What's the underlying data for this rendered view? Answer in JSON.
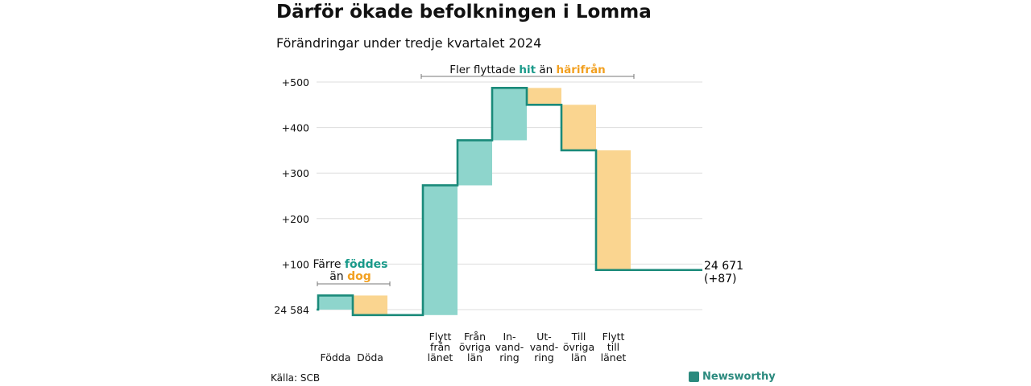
{
  "title": "Därför ökade befolkningen i Lomma",
  "subtitle": "Förändringar under tredje kvartalet 2024",
  "source": "Källa: SCB",
  "brand": "Newsworthy",
  "colors": {
    "increase": "#8ed5cc",
    "decrease": "#fad590",
    "line": "#1a8a7a",
    "grid": "#dddddd"
  },
  "annotations": {
    "left": {
      "line1": "Färre",
      "line1_hl": "föddes",
      "line2": "än",
      "line2_hl": "dog"
    },
    "top": {
      "pre": "Fler flyttade",
      "hl1": "hit",
      "mid": "än",
      "hl2": "härifrån"
    }
  },
  "end_label": {
    "value": "24 671",
    "change": "(+87)"
  },
  "chart_data": {
    "type": "waterfall",
    "start_label": "24 584",
    "start_value": 0,
    "end_value": 87,
    "yticks": [
      0,
      100,
      200,
      300,
      400,
      500
    ],
    "ytick_labels": [
      "24 584",
      "+100",
      "+200",
      "+300",
      "+400",
      "+500"
    ],
    "ylim": [
      -20,
      520
    ],
    "groups": [
      {
        "categories": [
          {
            "label": [
              "Födda"
            ],
            "value": 31
          },
          {
            "label": [
              "Döda"
            ],
            "value": -43
          }
        ]
      },
      {
        "categories": [
          {
            "label": [
              "Flytt",
              "från",
              "länet"
            ],
            "value": 285
          },
          {
            "label": [
              "Från",
              "övriga",
              "län"
            ],
            "value": 99
          },
          {
            "label": [
              "In-",
              "vand-",
              "ring"
            ],
            "value": 115
          },
          {
            "label": [
              "Ut-",
              "vand-",
              "ring"
            ],
            "value": -37
          },
          {
            "label": [
              "Till",
              "övriga",
              "län"
            ],
            "value": -100
          },
          {
            "label": [
              "Flytt",
              "till",
              "länet"
            ],
            "value": -263
          }
        ]
      }
    ]
  }
}
